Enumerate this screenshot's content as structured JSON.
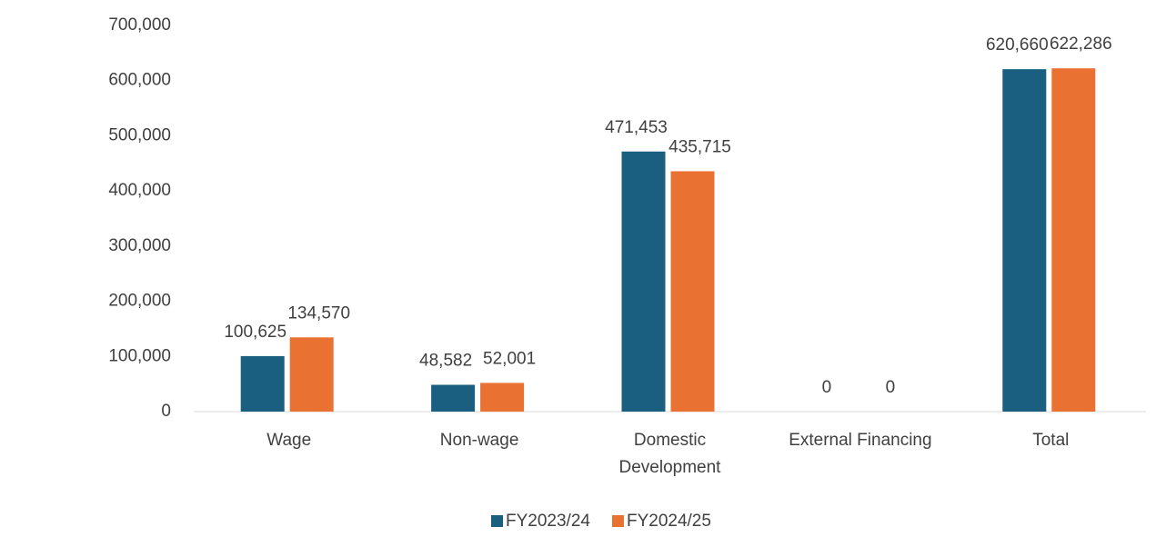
{
  "chart_data": {
    "type": "bar",
    "categories": [
      "Wage",
      "Non-wage",
      "Domestic Development",
      "External Financing",
      "Total"
    ],
    "series": [
      {
        "name": "FY2023/24",
        "color": "#1a5e80",
        "values": [
          100625,
          48582,
          471453,
          0,
          620660
        ],
        "value_labels": [
          "100,625",
          "48,582",
          "471,453",
          "0",
          "620,660"
        ]
      },
      {
        "name": "FY2024/25",
        "color": "#e97132",
        "values": [
          134570,
          52001,
          435715,
          0,
          622286
        ],
        "value_labels": [
          "134,570",
          "52,001",
          "435,715",
          "0",
          "622,286"
        ]
      }
    ],
    "ylim": [
      0,
      700000
    ],
    "yticks": [
      0,
      {
        "value": 100000,
        "label": "100,000"
      },
      {
        "value": 200000,
        "label": "200,000"
      },
      {
        "value": 300000,
        "label": "300,000"
      },
      {
        "value": 400000,
        "label": "400,000"
      },
      {
        "value": 500000,
        "label": "500,000"
      },
      {
        "value": 600000,
        "label": "600,000"
      },
      {
        "value": 700000,
        "label": "700,000"
      }
    ],
    "grid": false,
    "legend": "bottom"
  }
}
